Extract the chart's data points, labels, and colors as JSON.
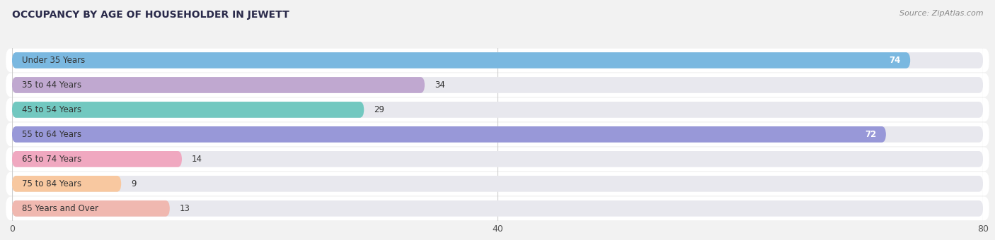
{
  "title": "OCCUPANCY BY AGE OF HOUSEHOLDER IN JEWETT",
  "source": "Source: ZipAtlas.com",
  "categories": [
    "Under 35 Years",
    "35 to 44 Years",
    "45 to 54 Years",
    "55 to 64 Years",
    "65 to 74 Years",
    "75 to 84 Years",
    "85 Years and Over"
  ],
  "values": [
    74,
    34,
    29,
    72,
    14,
    9,
    13
  ],
  "bar_colors": [
    "#7ab8e0",
    "#c0a8d0",
    "#72c8c0",
    "#9898d8",
    "#f0a8c0",
    "#f8c8a0",
    "#f0b8b0"
  ],
  "bar_labels_inside": [
    true,
    false,
    false,
    true,
    false,
    false,
    false
  ],
  "xlim": [
    0,
    80
  ],
  "xticks": [
    0,
    40,
    80
  ],
  "fig_bg": "#f2f2f2",
  "row_bg": "#ffffff",
  "bar_bg": "#e8e8ee",
  "title_color": "#2a2a4a",
  "source_color": "#888888",
  "label_color": "#333333",
  "value_color_inside": "#ffffff",
  "value_color_outside": "#333333",
  "grid_color": "#cccccc"
}
